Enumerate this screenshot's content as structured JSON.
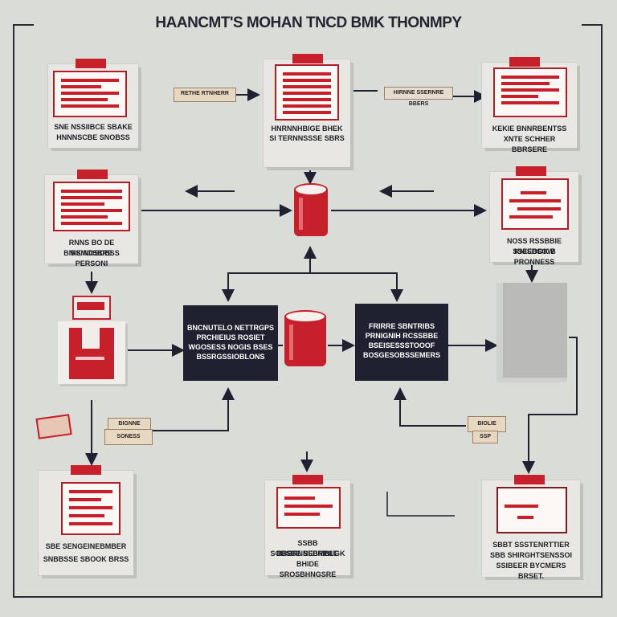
{
  "title": "HAANCMT'S MOHAN TNCD BMK THONMPY",
  "cards": {
    "top_left": {
      "tag": "",
      "caption": [
        "SNE NSSIIBCE SBAKE",
        "HNNNSCBE SNOBSS"
      ]
    },
    "top_center": {
      "tag": "",
      "caption": [
        "HNRNNHBIGE BHEK",
        "SI TERNNSSSE SBRS"
      ]
    },
    "top_right": {
      "tag": "",
      "caption": [
        "KEKIE BNNRBENTSS",
        "XNTE SCHHER BBRSERE"
      ]
    },
    "mid_left": {
      "tag": "",
      "caption": [
        "RNNS BO DE RSMOSBRE",
        "BNIK NOSOBSS PERSONI"
      ]
    },
    "mid_right": {
      "tag": "",
      "caption": [
        "NOSS RSSBBIE SSEEOOK B",
        "KNISBSOW PRONNESS"
      ]
    },
    "bottom_left": {
      "tag": "",
      "caption": [
        "SBE SENGEINEBMBER",
        "SNBBSSE SBOOK BRSS"
      ]
    },
    "bottom_center": {
      "tag": "",
      "caption": [
        "SSBB BBBRNNEBMBLE",
        "SOBSBE SSBRINIIGK",
        "BHIDE SROSBHNGSRE"
      ]
    },
    "bottom_right": {
      "tag": "",
      "caption": [
        "SBBT SSSTENRTTIER",
        "SBB SHIRGHTSENSSOI",
        "SSIBEER BYCMERS BRSET."
      ]
    }
  },
  "dark_boxes": {
    "left": [
      "BNCNUTELO NETTRGPS",
      "PRCHIEIUS ROSIET",
      "WGOSESS NOGIS BSES",
      "BSSRGSSIOBLONS"
    ],
    "right": [
      "FRIRRE SBNTRIBS",
      "PRNIGNIH RCSSBBE",
      "BSEISESSSTOOOF",
      "BOSGESOBSSEMERS"
    ]
  },
  "labels": {
    "top_left_arrow": "RETHE RTNHERR",
    "top_right_arrow": "HIRNNE SSERNRE BBERS",
    "left_note_top": "BIGNNE",
    "left_note_bottom": "SONESS",
    "right_note_top": "BIOLIE",
    "right_note_bottom": "SSP"
  },
  "colors": {
    "background": "#d9dcd7",
    "accent_red": "#c8202a",
    "dark_navy": "#1f2131",
    "frame": "#2b2d33"
  }
}
